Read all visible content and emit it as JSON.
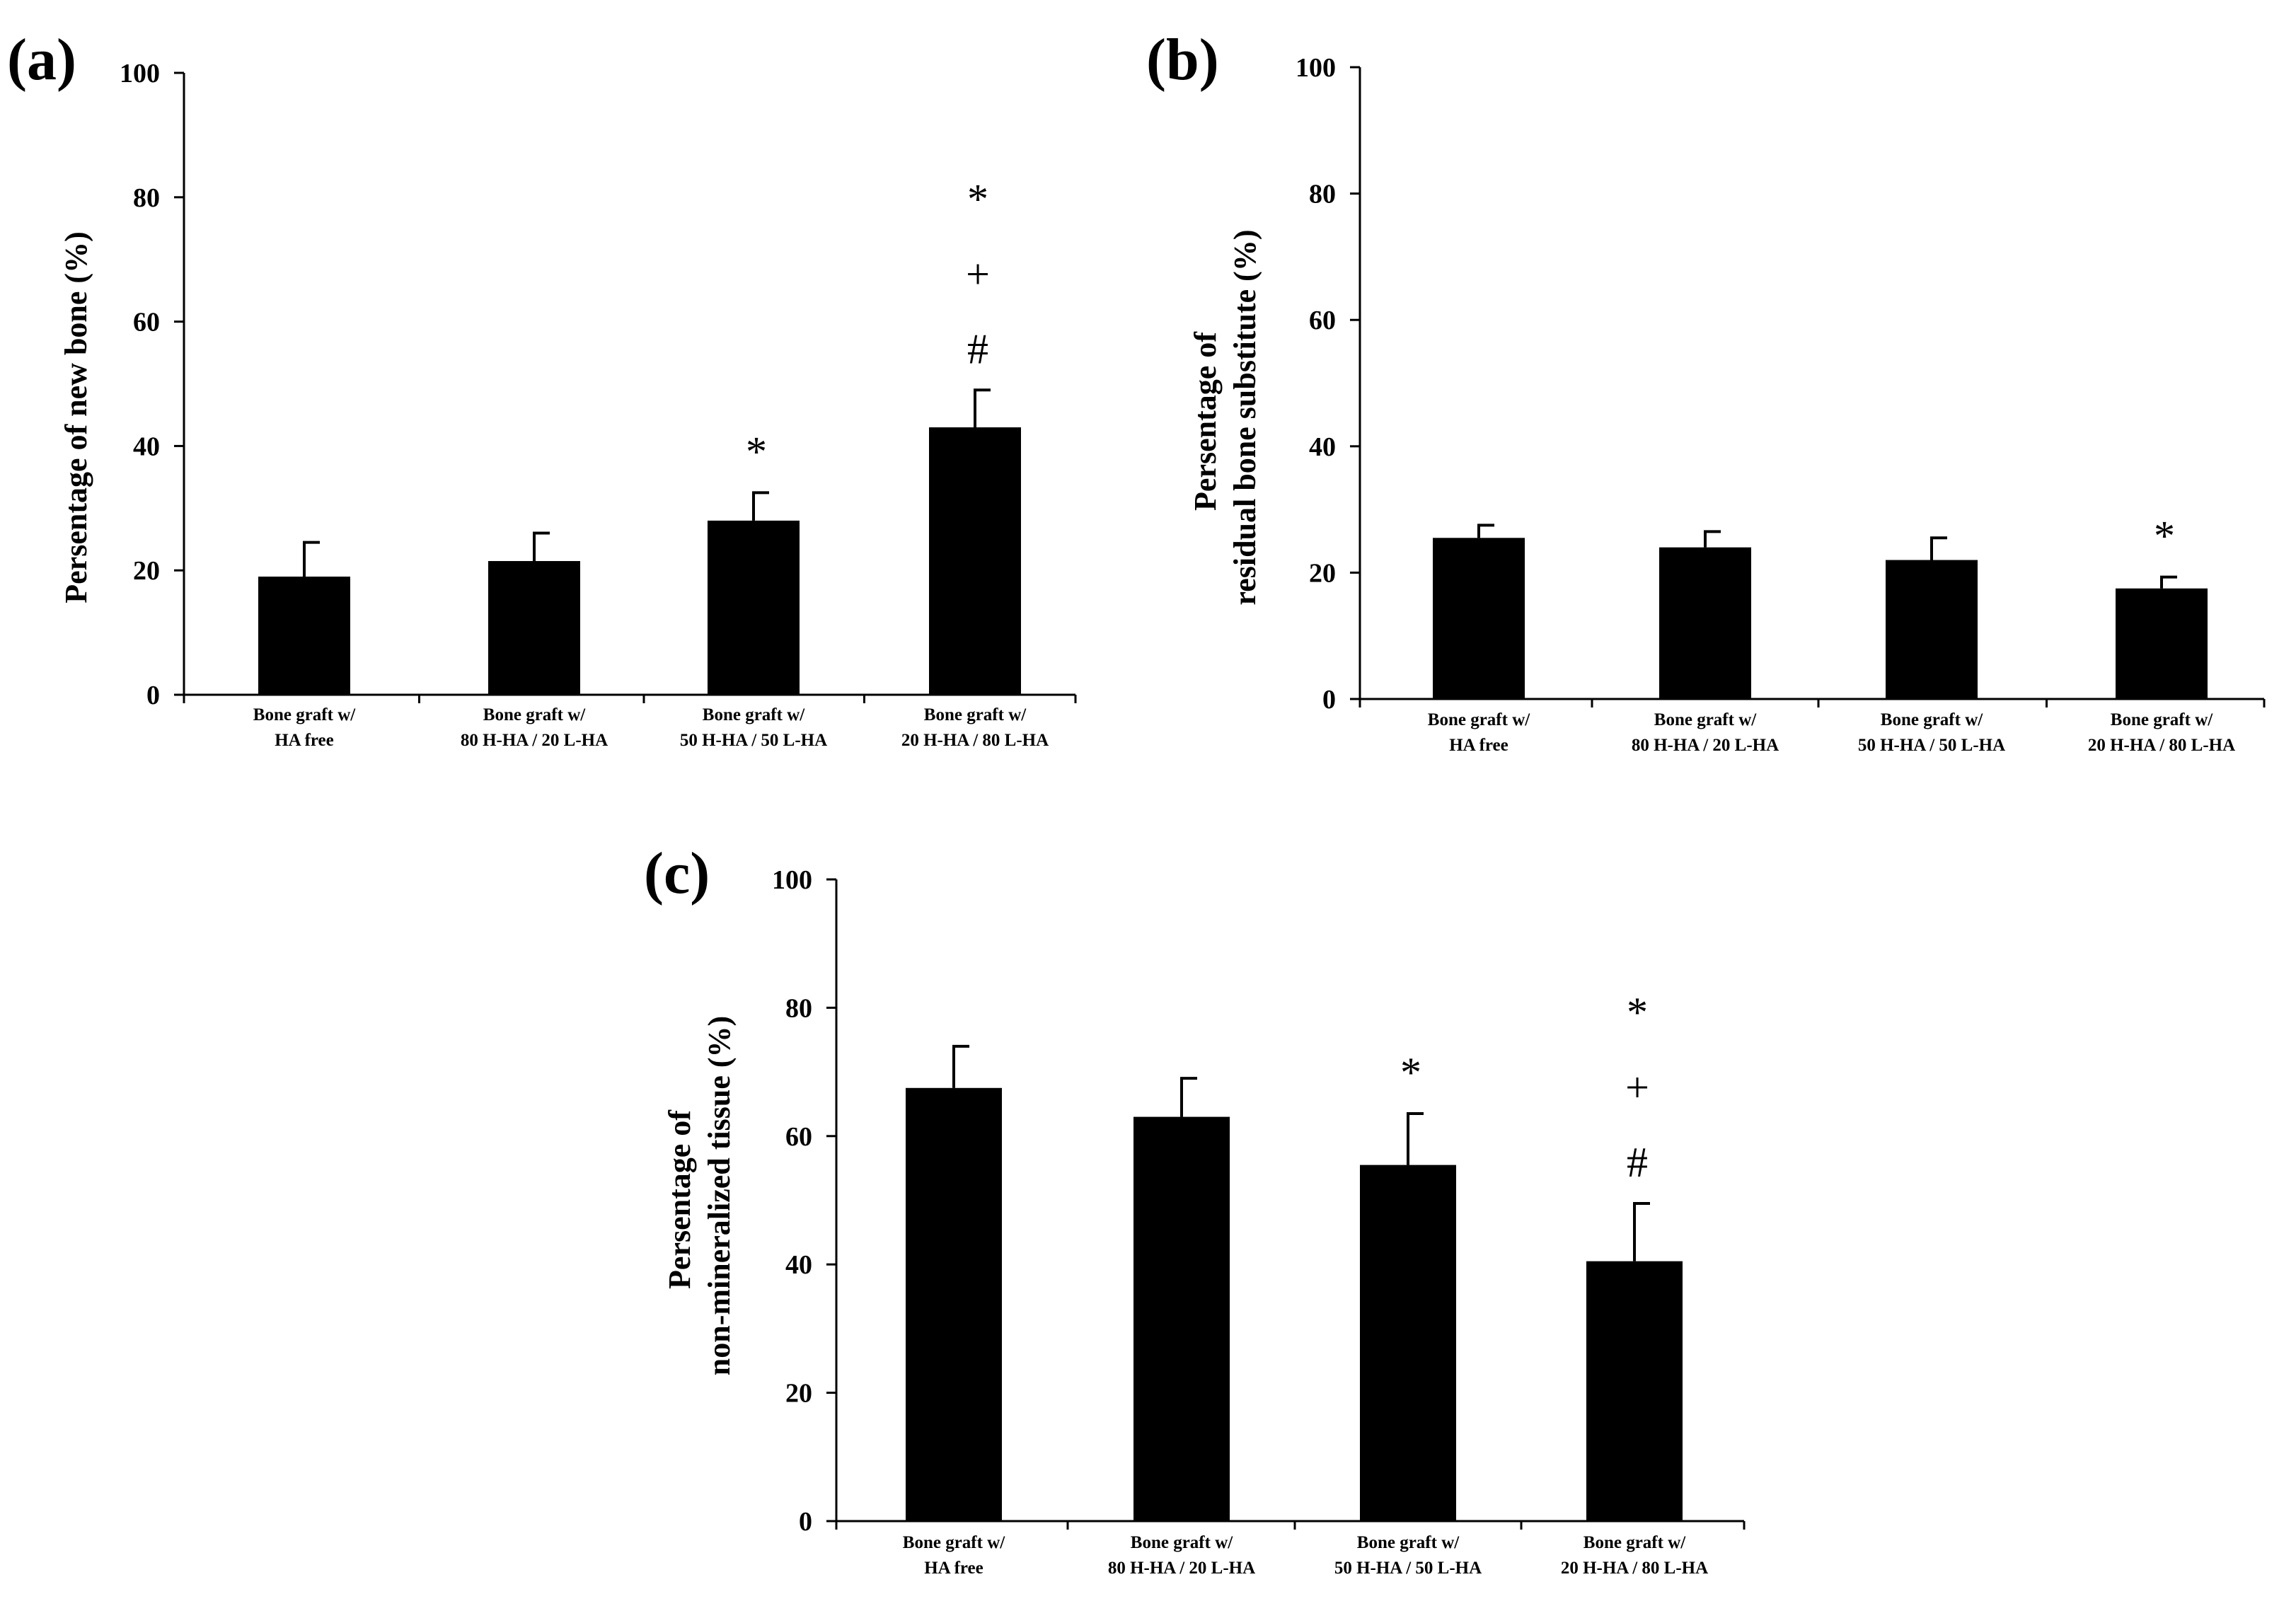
{
  "chart_data": [
    {
      "type": "bar",
      "panel": "(a)",
      "ylabel": "Persentage of new bone (%)",
      "ylim": [
        0,
        100
      ],
      "yticks": [
        0,
        20,
        40,
        60,
        80,
        100
      ],
      "categories": [
        {
          "line1": "Bone graft w/",
          "line2": "HA free"
        },
        {
          "line1": "Bone graft w/",
          "line2": "80 H-HA / 20 L-HA"
        },
        {
          "line1": "Bone graft w/",
          "line2": "50 H-HA / 50 L-HA"
        },
        {
          "line1": "Bone graft w/",
          "line2": "20 H-HA / 80 L-HA"
        }
      ],
      "values": [
        19,
        21.5,
        28,
        43
      ],
      "errors": [
        5.5,
        4.5,
        4.5,
        6
      ],
      "significance": [
        [],
        [],
        [
          "*"
        ],
        [
          "*",
          "+",
          "#"
        ]
      ]
    },
    {
      "type": "bar",
      "panel": "(b)",
      "ylabel": "Persentage of residual bone substitute (%)",
      "ylabel_lines": [
        "Persentage of",
        "residual bone substitute (%)"
      ],
      "ylim": [
        0,
        100
      ],
      "yticks": [
        0,
        20,
        40,
        60,
        80,
        100
      ],
      "categories": [
        {
          "line1": "Bone graft w/",
          "line2": "HA free"
        },
        {
          "line1": "Bone graft w/",
          "line2": "80 H-HA / 20 L-HA"
        },
        {
          "line1": "Bone graft w/",
          "line2": "50 H-HA / 50 L-HA"
        },
        {
          "line1": "Bone graft w/",
          "line2": "20 H-HA / 80 L-HA"
        }
      ],
      "values": [
        25.5,
        24,
        22,
        17.5
      ],
      "errors": [
        2,
        2.5,
        3.5,
        1.8
      ],
      "significance": [
        [],
        [],
        [],
        [
          "*"
        ]
      ]
    },
    {
      "type": "bar",
      "panel": "(c)",
      "ylabel": "Persentage of non-mineralized tissue (%)",
      "ylabel_lines": [
        "Persentage of",
        "non-mineralized tissue (%)"
      ],
      "ylim": [
        0,
        100
      ],
      "yticks": [
        0,
        20,
        40,
        60,
        80,
        100
      ],
      "categories": [
        {
          "line1": "Bone graft w/",
          "line2": "HA free"
        },
        {
          "line1": "Bone graft w/",
          "line2": "80 H-HA / 20 L-HA"
        },
        {
          "line1": "Bone graft w/",
          "line2": "50 H-HA / 50 L-HA"
        },
        {
          "line1": "Bone graft w/",
          "line2": "20 H-HA / 80 L-HA"
        }
      ],
      "values": [
        67.5,
        63,
        55.5,
        40.5
      ],
      "errors": [
        6.5,
        6,
        8,
        9
      ],
      "significance": [
        [],
        [],
        [
          "*"
        ],
        [
          "*",
          "+",
          "#"
        ]
      ]
    }
  ],
  "colors": {
    "bar": "#000000",
    "axis": "#000000",
    "background": "#ffffff"
  }
}
